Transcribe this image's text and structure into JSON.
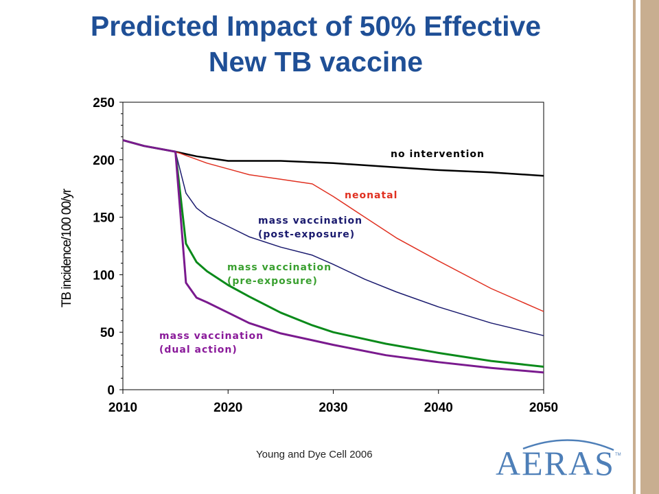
{
  "slide": {
    "title_line1": "Predicted Impact of 50% Effective",
    "title_line2": "New TB vaccine",
    "citation": "Young and Dye Cell 2006",
    "logo_text": "AERAS",
    "logo_tm": "TM"
  },
  "colors": {
    "title": "#1f4f96",
    "accent_band": "#c8ae90",
    "logo": "#4e7fb8"
  },
  "chart_data": {
    "type": "line",
    "title": "",
    "xlabel": "",
    "ylabel": "TB incidence/100 00/yr",
    "xlim": [
      2010,
      2050
    ],
    "ylim": [
      0,
      250
    ],
    "xticks": [
      2010,
      2020,
      2030,
      2040,
      2050
    ],
    "yticks": [
      0,
      50,
      100,
      150,
      200,
      250
    ],
    "grid": false,
    "legend": "inline labels",
    "series": [
      {
        "name": "no intervention",
        "color": "#000000",
        "label_color": "#000000",
        "x": [
          2010,
          2012,
          2015,
          2017,
          2020,
          2025,
          2030,
          2035,
          2040,
          2045,
          2050
        ],
        "y": [
          217,
          212,
          207,
          203,
          199,
          199,
          197,
          194,
          191,
          189,
          186
        ]
      },
      {
        "name": "neonatal",
        "color": "#e03020",
        "label_color": "#e03020",
        "x": [
          2010,
          2012,
          2015,
          2018,
          2020,
          2022,
          2025,
          2028,
          2030,
          2033,
          2036,
          2040,
          2045,
          2050
        ],
        "y": [
          217,
          212,
          207,
          197,
          192,
          187,
          183,
          179,
          168,
          150,
          132,
          112,
          88,
          68
        ]
      },
      {
        "name": "mass vaccination (post-exposure)",
        "label_lines": [
          "mass vaccination",
          "(post-exposure)"
        ],
        "color": "#1a1a6e",
        "label_color": "#1a1a6e",
        "x": [
          2010,
          2012,
          2015,
          2016,
          2017,
          2018,
          2020,
          2022,
          2025,
          2028,
          2030,
          2033,
          2036,
          2040,
          2045,
          2050
        ],
        "y": [
          217,
          212,
          207,
          171,
          158,
          151,
          142,
          133,
          124,
          117,
          109,
          96,
          85,
          72,
          58,
          47
        ]
      },
      {
        "name": "mass vaccination (pre-exposure)",
        "label_lines": [
          "mass vaccination",
          "(pre-exposure)"
        ],
        "color": "#0a8a1a",
        "label_color": "#3aa030",
        "x": [
          2010,
          2012,
          2015,
          2016,
          2017,
          2018,
          2020,
          2022,
          2025,
          2028,
          2030,
          2035,
          2040,
          2045,
          2050
        ],
        "y": [
          217,
          212,
          207,
          127,
          111,
          103,
          91,
          81,
          67,
          56,
          50,
          40,
          32,
          25,
          20
        ]
      },
      {
        "name": "mass vaccination (dual action)",
        "label_lines": [
          "mass vaccination",
          "(dual action)"
        ],
        "color": "#7a1a8e",
        "label_color": "#8a1a9a",
        "x": [
          2010,
          2012,
          2015,
          2016,
          2017,
          2018,
          2020,
          2022,
          2025,
          2028,
          2030,
          2035,
          2040,
          2045,
          2050
        ],
        "y": [
          217,
          212,
          207,
          93,
          80,
          76,
          67,
          58,
          49,
          43,
          39,
          30,
          24,
          19,
          15
        ]
      }
    ]
  }
}
